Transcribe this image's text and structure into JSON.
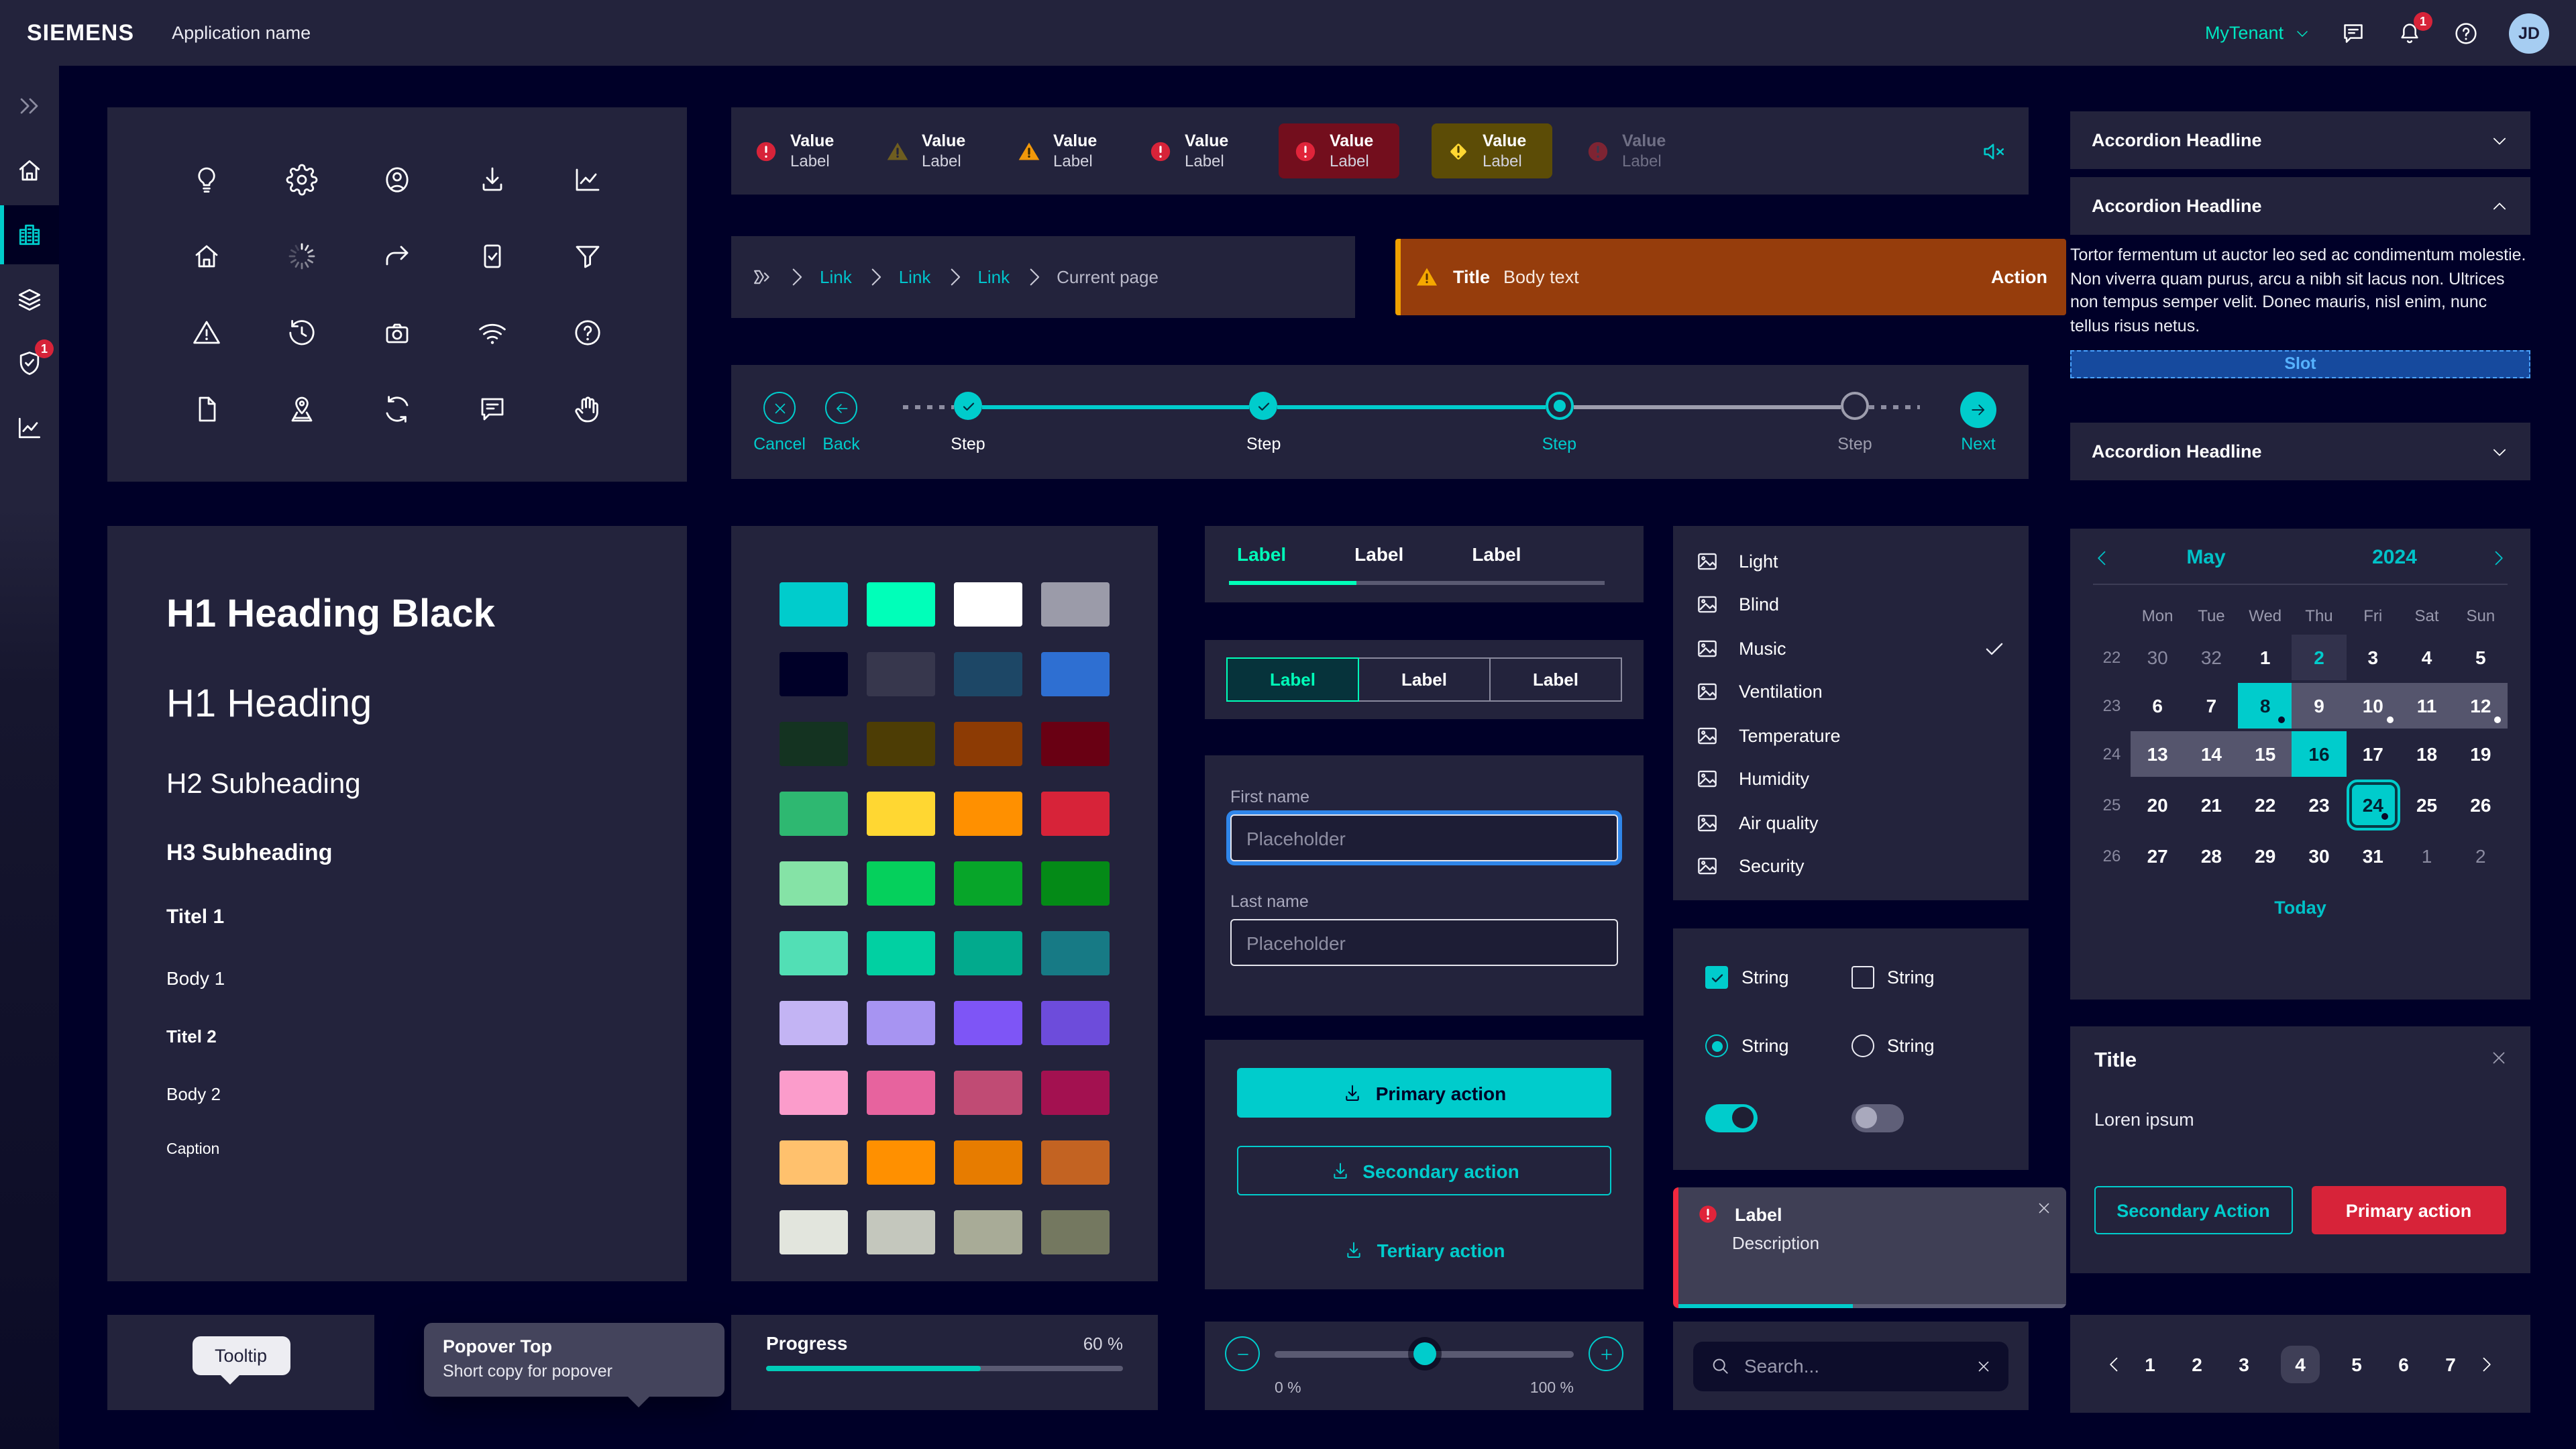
{
  "colors": {
    "accent": "#00cccc",
    "accent_green": "#00ffb9",
    "alarm_red": "#d72339",
    "warning_orange": "#f0a100",
    "page_bg": "#000028",
    "panel_bg": "#23233c"
  },
  "header": {
    "brand": "SIEMENS",
    "app_name": "Application name",
    "tenant": "MyTenant",
    "notification_count": "1",
    "avatar_initials": "JD"
  },
  "sidebar": {
    "badge": "1",
    "items": [
      "chevrons-right",
      "home",
      "building",
      "layers",
      "shield-check",
      "line-chart"
    ],
    "active_item": "building"
  },
  "icon_grid": {
    "icons": [
      "lightbulb",
      "gear",
      "user-circle",
      "download",
      "line-chart",
      "home",
      "spinner",
      "share",
      "checkbox-checked",
      "filter",
      "warning-triangle",
      "history",
      "camera",
      "wifi",
      "question-circle",
      "document",
      "map-pin",
      "refresh",
      "comment",
      "hand"
    ]
  },
  "alert_strip": {
    "items": [
      {
        "shape": "circle",
        "iconColor": "#d72339",
        "markColor": "#ffffff",
        "value": "Value",
        "label": "Label",
        "cardBg": null,
        "muted": false
      },
      {
        "shape": "triangle",
        "iconColor": "#6e5d20",
        "markColor": "#23233c",
        "value": "Value",
        "label": "Label",
        "cardBg": null,
        "muted": false
      },
      {
        "shape": "triangle",
        "iconColor": "#f2980a",
        "markColor": "#3a2800",
        "value": "Value",
        "label": "Label",
        "cardBg": null,
        "muted": false
      },
      {
        "shape": "circle",
        "iconColor": "#d72339",
        "markColor": "#ffffff",
        "value": "Value",
        "label": "Label",
        "cardBg": null,
        "muted": false
      },
      {
        "shape": "circle",
        "iconColor": "#e0243a",
        "markColor": "#ffffff",
        "value": "Value",
        "label": "Label",
        "cardBg": "#730e1d",
        "muted": false
      },
      {
        "shape": "diamond",
        "iconColor": "#ffd732",
        "markColor": "#4a3b00",
        "value": "Value",
        "label": "Label",
        "cardBg": "#5c4c06",
        "muted": false
      },
      {
        "shape": "circle",
        "iconColor": "#7e2433",
        "markColor": "#3a3a50",
        "value": "Value",
        "label": "Label",
        "cardBg": null,
        "muted": true
      }
    ],
    "mute_icon": "speaker-off"
  },
  "breadcrumb": {
    "links": [
      "Link",
      "Link",
      "Link"
    ],
    "current": "Current page"
  },
  "banner": {
    "title": "Title",
    "body": "Body text",
    "action": "Action"
  },
  "stepper": {
    "cancel": "Cancel",
    "back": "Back",
    "next": "Next",
    "steps": [
      {
        "label": "Step",
        "state": "done"
      },
      {
        "label": "Step",
        "state": "done"
      },
      {
        "label": "Step",
        "state": "current"
      },
      {
        "label": "Step",
        "state": "open"
      }
    ]
  },
  "typography": {
    "samples": [
      {
        "text": "H1 Heading Black",
        "style": "h1b"
      },
      {
        "text": "H1 Heading",
        "style": "h1"
      },
      {
        "text": "H2 Subheading",
        "style": "h2"
      },
      {
        "text": "H3 Subheading",
        "style": "h3"
      },
      {
        "text": "Titel 1",
        "style": "t1"
      },
      {
        "text": "Body 1",
        "style": "b1"
      },
      {
        "text": "Titel 2",
        "style": "t2"
      },
      {
        "text": "Body 2",
        "style": "b2"
      },
      {
        "text": "Caption",
        "style": "cap"
      }
    ]
  },
  "swatches": {
    "rows": [
      [
        "#00cccc",
        "#00ffb9",
        "#ffffff",
        "#9b9ba9"
      ],
      [
        "#000028",
        "#37374d",
        "#1d4766",
        "#2e6fd2"
      ],
      [
        "#143321",
        "#4d3d05",
        "#8d3b04",
        "#690013"
      ],
      [
        "#2eb871",
        "#ffd732",
        "#ff9000",
        "#d72339"
      ],
      [
        "#85e3a6",
        "#05d05c",
        "#07a529",
        "#048a17"
      ],
      [
        "#52dfb5",
        "#01d0a2",
        "#02aa8d",
        "#177a85"
      ],
      [
        "#c3b4f4",
        "#a794f2",
        "#7e55f6",
        "#6d4cdb"
      ],
      [
        "#fb9ccb",
        "#e7639e",
        "#c04b74",
        "#a31150"
      ],
      [
        "#ffc16d",
        "#ff9000",
        "#e77c00",
        "#c36322"
      ],
      [
        "#e2e5dd",
        "#c4c7bd",
        "#a8ab97",
        "#747860"
      ]
    ]
  },
  "tabs": {
    "items": [
      "Label",
      "Label",
      "Label"
    ],
    "active": 0,
    "underline_percent": 34
  },
  "segmented": {
    "items": [
      "Label",
      "Label",
      "Label"
    ],
    "active": 0
  },
  "form": {
    "fields": [
      {
        "label": "First name",
        "placeholder": "Placeholder",
        "focused": true
      },
      {
        "label": "Last name",
        "placeholder": "Placeholder",
        "focused": false
      }
    ]
  },
  "action_buttons": {
    "primary": "Primary action",
    "secondary": "Secondary action",
    "tertiary": "Tertiary action"
  },
  "slider": {
    "min_label": "0 %",
    "max_label": "100 %",
    "value_percent": 50
  },
  "devices": {
    "items": [
      {
        "label": "Light",
        "checked": false
      },
      {
        "label": "Blind",
        "checked": false
      },
      {
        "label": "Music",
        "checked": true
      },
      {
        "label": "Ventilation",
        "checked": false
      },
      {
        "label": "Temperature",
        "checked": false
      },
      {
        "label": "Humidity",
        "checked": false
      },
      {
        "label": "Air quality",
        "checked": false
      },
      {
        "label": "Security",
        "checked": false
      }
    ]
  },
  "controls": {
    "checkboxes": [
      {
        "label": "String",
        "checked": true
      },
      {
        "label": "String",
        "checked": false
      }
    ],
    "radios": [
      {
        "label": "String",
        "selected": true
      },
      {
        "label": "String",
        "selected": false
      }
    ],
    "toggles": [
      {
        "on": true
      },
      {
        "on": false
      }
    ]
  },
  "toast": {
    "label": "Label",
    "description": "Description",
    "progress_percent": 45
  },
  "search": {
    "placeholder": "Search..."
  },
  "accordions": {
    "items": [
      {
        "headline": "Accordion Headline",
        "expanded": false
      },
      {
        "headline": "Accordion Headline",
        "expanded": true,
        "body": "Tortor fermentum ut auctor leo sed ac condimentum molestie. Non viverra quam purus, arcu a nibh sit lacus non. Ultrices non tempus semper velit. Donec mauris, nisl enim, nunc tellus risus netus.",
        "slot": "Slot"
      },
      {
        "headline": "Accordion Headline",
        "expanded": false
      }
    ]
  },
  "calendar": {
    "month": "May",
    "year": "2024",
    "today_label": "Today",
    "day_headers": [
      "Mon",
      "Tue",
      "Wed",
      "Thu",
      "Fri",
      "Sat",
      "Sun"
    ],
    "weeks": [
      {
        "week": "22",
        "days": [
          {
            "d": "30",
            "state": "muted"
          },
          {
            "d": "32",
            "state": "muted"
          },
          {
            "d": "1"
          },
          {
            "d": "2",
            "state": "today"
          },
          {
            "d": "3"
          },
          {
            "d": "4"
          },
          {
            "d": "5"
          }
        ]
      },
      {
        "week": "23",
        "days": [
          {
            "d": "6"
          },
          {
            "d": "7"
          },
          {
            "d": "8",
            "state": "sel",
            "dot": "dark"
          },
          {
            "d": "9",
            "state": "range"
          },
          {
            "d": "10",
            "state": "range",
            "dot": "white"
          },
          {
            "d": "11",
            "state": "range"
          },
          {
            "d": "12",
            "state": "range",
            "dot": "white"
          }
        ]
      },
      {
        "week": "24",
        "days": [
          {
            "d": "13",
            "state": "range"
          },
          {
            "d": "14",
            "state": "range"
          },
          {
            "d": "15",
            "state": "range"
          },
          {
            "d": "16",
            "state": "sel"
          },
          {
            "d": "17"
          },
          {
            "d": "18"
          },
          {
            "d": "19"
          }
        ]
      },
      {
        "week": "25",
        "days": [
          {
            "d": "20"
          },
          {
            "d": "21"
          },
          {
            "d": "22"
          },
          {
            "d": "23"
          },
          {
            "d": "24",
            "state": "selOutline",
            "dot": "dark"
          },
          {
            "d": "25"
          },
          {
            "d": "26"
          }
        ]
      },
      {
        "week": "26",
        "days": [
          {
            "d": "27"
          },
          {
            "d": "28"
          },
          {
            "d": "29"
          },
          {
            "d": "30"
          },
          {
            "d": "31"
          },
          {
            "d": "1",
            "state": "muted"
          },
          {
            "d": "2",
            "state": "muted"
          }
        ]
      }
    ]
  },
  "modal": {
    "title": "Title",
    "body": "Loren ipsum",
    "secondary": "Secondary Action",
    "primary": "Primary action"
  },
  "pagination": {
    "pages": [
      "1",
      "2",
      "3",
      "4",
      "5",
      "6",
      "7"
    ],
    "active": 3
  },
  "tooltip": {
    "text": "Tooltip"
  },
  "popover": {
    "title": "Popover Top",
    "body": "Short copy for popover"
  },
  "progress": {
    "label": "Progress",
    "value_label": "60 %",
    "percent": 60
  }
}
